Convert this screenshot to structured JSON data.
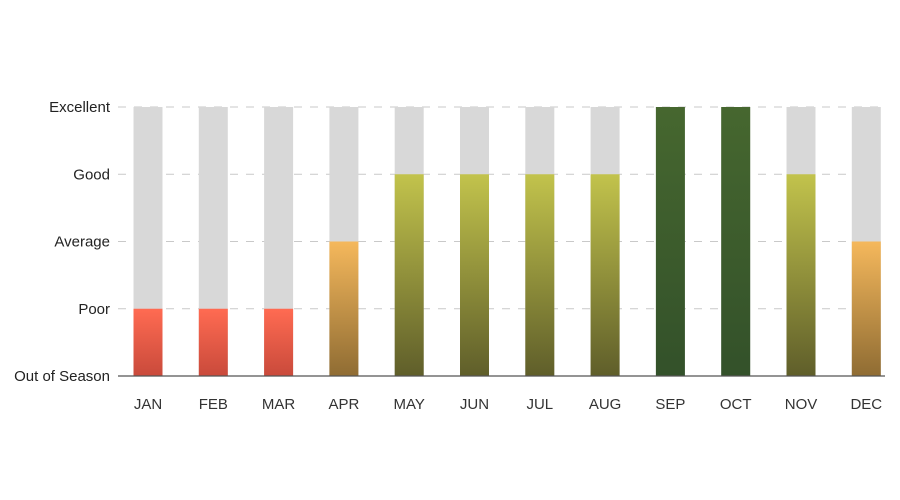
{
  "chart_data": {
    "type": "bar",
    "title": "",
    "xlabel": "",
    "ylabel": "",
    "y_levels": [
      "Out of Season",
      "Poor",
      "Average",
      "Good",
      "Excellent"
    ],
    "ylim": [
      0,
      4
    ],
    "categories": [
      "JAN",
      "FEB",
      "MAR",
      "APR",
      "MAY",
      "JUN",
      "JUL",
      "AUG",
      "SEP",
      "OCT",
      "NOV",
      "DEC"
    ],
    "values": [
      1,
      1,
      1,
      2,
      3,
      3,
      3,
      3,
      4,
      4,
      3,
      2
    ],
    "grid": "horizontal-dashed",
    "legend": "none",
    "colors": {
      "background_bar": "#d8d8d8",
      "poor": [
        "#ff6b52",
        "#c94a3b"
      ],
      "average": [
        "#f5b85c",
        "#8f6c33"
      ],
      "good": [
        "#c2c34c",
        "#5f5e2a"
      ],
      "excellent": [
        "#46672f",
        "#33512a"
      ],
      "axis": "#555555",
      "grid": "#c9c9c9"
    }
  }
}
